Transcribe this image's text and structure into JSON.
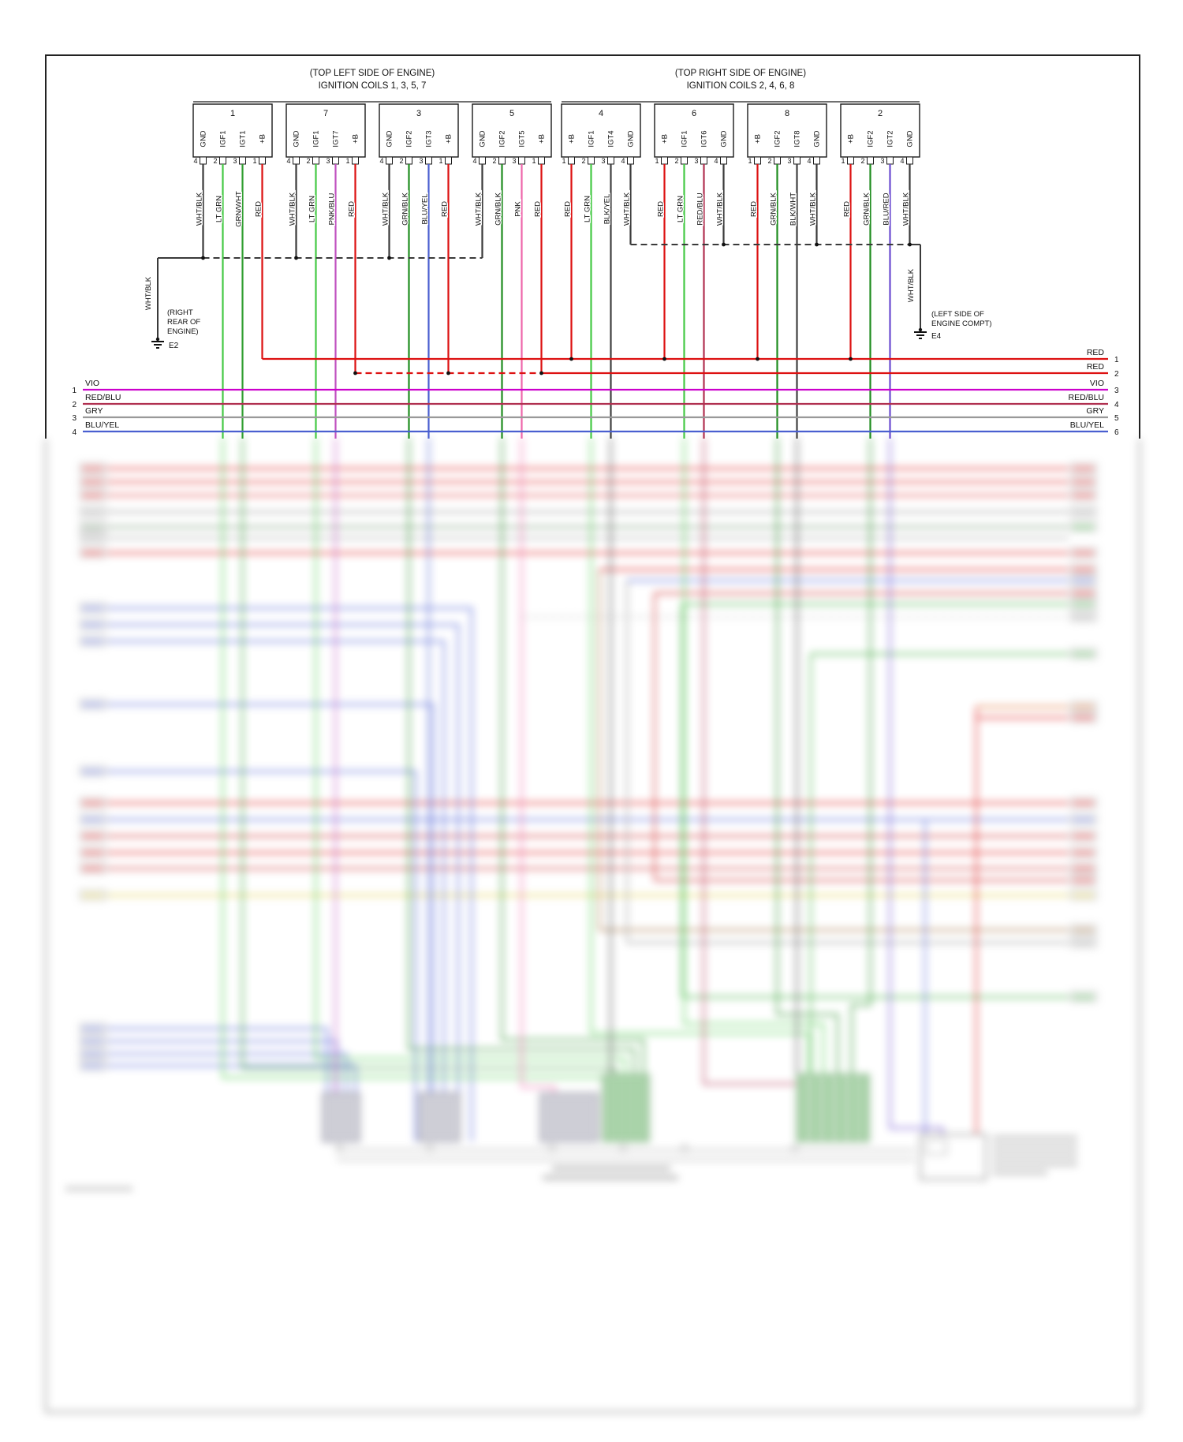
{
  "colors": {
    "WHT/BLK": "#3a3a3a",
    "LT GRN": "#44c944",
    "GRN/WHT": "#2f9e2f",
    "GRN/BLK": "#1e8c1e",
    "PNK/BLU": "#c050c0",
    "RED": "#dd1111",
    "BLU/YEL": "#4a5fd0",
    "PNK": "#ee66aa",
    "BLK/YEL": "#3f3f3f",
    "RED/BLU": "#b03050",
    "BLK/WHT": "#3f3f3f",
    "BLU/RED": "#6a4ad0",
    "VIO": "#cc00cc",
    "GRY": "#999999",
    "BLU": "#5566d8",
    "YEL": "#e0cc3f",
    "GRN": "#3fae3f",
    "ORG": "#e06a2a",
    "BRN": "#a2703d"
  },
  "diagram": {
    "left_group": {
      "title1": "(TOP LEFT SIDE OF ENGINE)",
      "title2": "IGNITION COILS 1, 3, 5, 7",
      "connectors": [
        {
          "number": "1",
          "pins": [
            "GND",
            "IGF1",
            "IGT1",
            "+B"
          ],
          "pin_numbers": [
            "4",
            "2",
            "3",
            "1"
          ],
          "wire_colors": [
            "WHT/BLK",
            "LT GRN",
            "GRN/WHT",
            "RED"
          ]
        },
        {
          "number": "7",
          "pins": [
            "GND",
            "IGF1",
            "IGT7",
            "+B"
          ],
          "pin_numbers": [
            "4",
            "2",
            "3",
            "1"
          ],
          "wire_colors": [
            "WHT/BLK",
            "LT GRN",
            "PNK/BLU",
            "RED"
          ]
        },
        {
          "number": "3",
          "pins": [
            "GND",
            "IGF2",
            "IGT3",
            "+B"
          ],
          "pin_numbers": [
            "4",
            "2",
            "3",
            "1"
          ],
          "wire_colors": [
            "WHT/BLK",
            "GRN/BLK",
            "BLU/YEL",
            "RED"
          ]
        },
        {
          "number": "5",
          "pins": [
            "GND",
            "IGF2",
            "IGT5",
            "+B"
          ],
          "pin_numbers": [
            "4",
            "2",
            "3",
            "1"
          ],
          "wire_colors": [
            "WHT/BLK",
            "GRN/BLK",
            "PNK",
            "RED"
          ]
        }
      ]
    },
    "right_group": {
      "title1": "(TOP RIGHT SIDE OF ENGINE)",
      "title2": "IGNITION COILS 2, 4, 6, 8",
      "connectors": [
        {
          "number": "4",
          "pins": [
            "+B",
            "IGF1",
            "IGT4",
            "GND"
          ],
          "pin_numbers": [
            "1",
            "2",
            "3",
            "4"
          ],
          "wire_colors": [
            "RED",
            "LT GRN",
            "BLK/YEL",
            "WHT/BLK"
          ]
        },
        {
          "number": "6",
          "pins": [
            "+B",
            "IGF1",
            "IGT6",
            "GND"
          ],
          "pin_numbers": [
            "1",
            "2",
            "3",
            "4"
          ],
          "wire_colors": [
            "RED",
            "LT GRN",
            "RED/BLU",
            "WHT/BLK"
          ]
        },
        {
          "number": "8",
          "pins": [
            "+B",
            "IGF2",
            "IGT8",
            "GND"
          ],
          "pin_numbers": [
            "1",
            "2",
            "3",
            "4"
          ],
          "wire_colors": [
            "RED",
            "GRN/BLK",
            "BLK/WHT",
            "WHT/BLK"
          ]
        },
        {
          "number": "2",
          "pins": [
            "+B",
            "IGF2",
            "IGT2",
            "GND"
          ],
          "pin_numbers": [
            "1",
            "2",
            "3",
            "4"
          ],
          "wire_colors": [
            "RED",
            "GRN/BLK",
            "BLU/RED",
            "WHT/BLK"
          ]
        }
      ]
    },
    "ground_left": {
      "wire": "WHT/BLK",
      "loc1": "(RIGHT",
      "loc2": "REAR OF",
      "loc3": "ENGINE)",
      "id": "E2"
    },
    "ground_right": {
      "wire": "WHT/BLK",
      "loc1": "(LEFT SIDE OF",
      "loc2": "ENGINE COMPT)",
      "id": "E4"
    },
    "bus_left": [
      {
        "num": "1",
        "label": "VIO"
      },
      {
        "num": "2",
        "label": "RED/BLU"
      },
      {
        "num": "3",
        "label": "GRY"
      },
      {
        "num": "4",
        "label": "BLU/YEL"
      }
    ],
    "bus_right": [
      {
        "num": "1",
        "label": "RED"
      },
      {
        "num": "2",
        "label": "RED"
      },
      {
        "num": "3",
        "label": "VIO"
      },
      {
        "num": "4",
        "label": "RED/BLU"
      },
      {
        "num": "5",
        "label": "GRY"
      },
      {
        "num": "6",
        "label": "BLU/YEL"
      }
    ]
  }
}
